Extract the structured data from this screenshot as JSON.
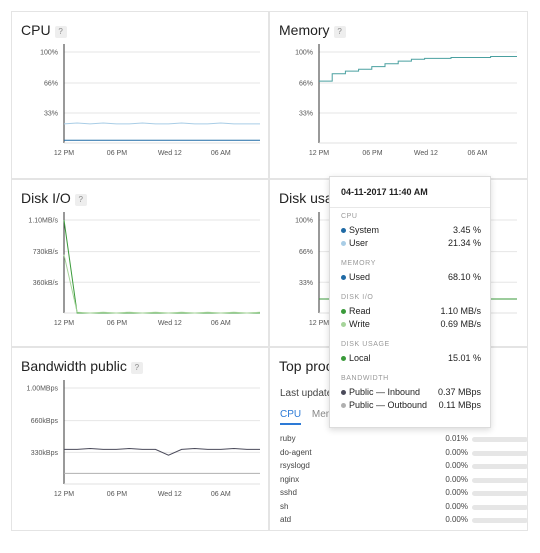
{
  "panels": {
    "cpu": {
      "title": "CPU",
      "help": "?"
    },
    "memory": {
      "title": "Memory",
      "help": "?"
    },
    "disk_io": {
      "title": "Disk I/O",
      "help": "?"
    },
    "disk_usage": {
      "title": "Disk usa"
    },
    "bandwidth": {
      "title": "Bandwidth public",
      "help": "?"
    },
    "top_processes": {
      "title": "Top proc",
      "last_updated": "Last update",
      "tabs": [
        {
          "label": "CPU",
          "active": true
        },
        {
          "label": "Mem",
          "active": false
        }
      ],
      "rows": [
        {
          "name": "ruby",
          "value": "0.01%"
        },
        {
          "name": "do-agent",
          "value": "0.00%"
        },
        {
          "name": "rsyslogd",
          "value": "0.00%"
        },
        {
          "name": "nginx",
          "value": "0.00%"
        },
        {
          "name": "sshd",
          "value": "0.00%"
        },
        {
          "name": "sh",
          "value": "0.00%"
        },
        {
          "name": "atd",
          "value": "0.00%"
        }
      ]
    }
  },
  "tooltip": {
    "timestamp": "04-11-2017 11:40 AM",
    "sections": [
      {
        "label": "CPU",
        "rows": [
          {
            "name": "System",
            "value": "3.45 %",
            "color": "#1f6aa5"
          },
          {
            "name": "User",
            "value": "21.34 %",
            "color": "#a9cde6"
          }
        ]
      },
      {
        "label": "MEMORY",
        "rows": [
          {
            "name": "Used",
            "value": "68.10 %",
            "color": "#1f6aa5"
          }
        ]
      },
      {
        "label": "DISK I/O",
        "rows": [
          {
            "name": "Read",
            "value": "1.10 MB/s",
            "color": "#3a9a3a"
          },
          {
            "name": "Write",
            "value": "0.69 MB/s",
            "color": "#a6d49a"
          }
        ]
      },
      {
        "label": "DISK USAGE",
        "rows": [
          {
            "name": "Local",
            "value": "15.01 %",
            "color": "#3a9a3a"
          }
        ]
      },
      {
        "label": "BANDWIDTH",
        "rows": [
          {
            "name": "Public — Inbound",
            "value": "0.37 MBps",
            "color": "#4a4a5a"
          },
          {
            "name": "Public — Outbound",
            "value": "0.11 MBps",
            "color": "#b0b0b0"
          }
        ]
      }
    ]
  },
  "charts": [
    {
      "id": "cpu",
      "chart_data": {
        "type": "line",
        "x_ticks": [
          "12 PM",
          "06 PM",
          "Wed 12",
          "06 AM"
        ],
        "y_ticks": [
          "100%",
          "66%",
          "33%"
        ],
        "ylim": [
          0,
          100
        ],
        "series": [
          {
            "name": "User",
            "color": "#a9cde6",
            "values": [
              21,
              22,
              21,
              22,
              21,
              21,
              22,
              21,
              21,
              22,
              21,
              21,
              22,
              21,
              21,
              21
            ]
          },
          {
            "name": "System",
            "color": "#1f6aa5",
            "values": [
              3,
              3,
              3,
              3,
              3,
              3,
              3,
              3,
              3,
              3,
              3,
              3,
              3,
              3,
              3,
              3
            ]
          }
        ]
      }
    },
    {
      "id": "memory",
      "chart_data": {
        "type": "line",
        "x_ticks": [
          "12 PM",
          "06 PM",
          "Wed 12",
          "06 AM"
        ],
        "y_ticks": [
          "100%",
          "66%",
          "33%"
        ],
        "ylim": [
          0,
          100
        ],
        "series": [
          {
            "name": "Used",
            "color": "#4aa0a0",
            "values": [
              68,
              76,
              79,
              81,
              84,
              87,
              90,
              92,
              93,
              93,
              94,
              94,
              94,
              95,
              95,
              95
            ]
          }
        ]
      }
    },
    {
      "id": "disk_io",
      "chart_data": {
        "type": "line",
        "x_ticks": [
          "12 PM",
          "06 PM",
          "Wed 12",
          "06 AM"
        ],
        "y_ticks": [
          "1.10MB/s",
          "730kB/s",
          "360kB/s"
        ],
        "ylim": [
          0,
          1.1
        ],
        "series": [
          {
            "name": "Read",
            "color": "#3a9a3a",
            "values": [
              1.1,
              0,
              0,
              0,
              0,
              0,
              0,
              0,
              0,
              0,
              0,
              0,
              0,
              0,
              0,
              0
            ]
          },
          {
            "name": "Write",
            "color": "#a6d49a",
            "values": [
              0.69,
              0.01,
              0,
              0.01,
              0,
              0.01,
              0,
              0.01,
              0,
              0.01,
              0,
              0.01,
              0,
              0.01,
              0,
              0.01
            ]
          }
        ]
      }
    },
    {
      "id": "disk_usage",
      "chart_data": {
        "type": "line",
        "x_ticks": [
          "12 PM"
        ],
        "y_ticks": [
          "100%",
          "66%",
          "33%"
        ],
        "ylim": [
          0,
          100
        ],
        "series": [
          {
            "name": "Local",
            "color": "#3a9a3a",
            "values": [
              15,
              15,
              15,
              15,
              15,
              15,
              15,
              15
            ]
          }
        ]
      }
    },
    {
      "id": "bandwidth",
      "chart_data": {
        "type": "line",
        "x_ticks": [
          "12 PM",
          "06 PM",
          "Wed 12",
          "06 AM"
        ],
        "y_ticks": [
          "1.00MBps",
          "660kBps",
          "330kBps"
        ],
        "ylim": [
          0,
          1.0
        ],
        "series": [
          {
            "name": "Public — Inbound",
            "color": "#4a4a5a",
            "values": [
              0.36,
              0.36,
              0.37,
              0.36,
              0.36,
              0.37,
              0.36,
              0.36,
              0.3,
              0.36,
              0.37,
              0.36,
              0.36,
              0.37,
              0.36,
              0.36
            ]
          },
          {
            "name": "Public — Outbound",
            "color": "#b0b0b0",
            "values": [
              0.11,
              0.11,
              0.11,
              0.11,
              0.11,
              0.11,
              0.11,
              0.11,
              0.11,
              0.11,
              0.11,
              0.11,
              0.11,
              0.11,
              0.11,
              0.11
            ]
          }
        ]
      }
    }
  ]
}
